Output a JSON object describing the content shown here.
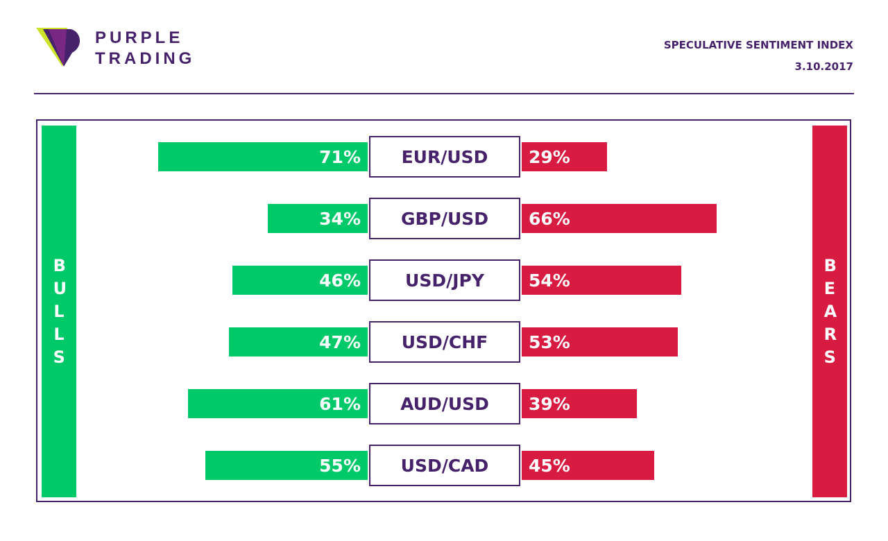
{
  "brand": {
    "line1": "PURPLE",
    "line2": "TRADING",
    "logo_icon": "purple-trading-logo-icon",
    "colors": {
      "purple": "#45226a",
      "lime": "#cde329",
      "magenta": "#8a2a8c"
    }
  },
  "header": {
    "title": "SPECULATIVE SENTIMENT INDEX",
    "date": "3.10.2017"
  },
  "colors": {
    "bulls": "#00c96a",
    "bears": "#d81b41",
    "frame": "#45226a"
  },
  "chart_data": {
    "type": "bar",
    "title": "SPECULATIVE SENTIMENT INDEX",
    "subtitle": "3.10.2017",
    "left_label": "BULLS",
    "right_label": "BEARS",
    "unit": "%",
    "categories": [
      "EUR/USD",
      "GBP/USD",
      "USD/JPY",
      "USD/CHF",
      "AUD/USD",
      "USD/CAD"
    ],
    "series": [
      {
        "name": "BULLS",
        "color": "#00c96a",
        "values": [
          71,
          34,
          46,
          47,
          61,
          55
        ]
      },
      {
        "name": "BEARS",
        "color": "#d81b41",
        "values": [
          29,
          66,
          54,
          53,
          39,
          45
        ]
      }
    ],
    "labels": {
      "BULLS": [
        "71%",
        "34%",
        "46%",
        "47%",
        "61%",
        "55%"
      ],
      "BEARS": [
        "29%",
        "66%",
        "54%",
        "53%",
        "39%",
        "45%"
      ]
    }
  }
}
